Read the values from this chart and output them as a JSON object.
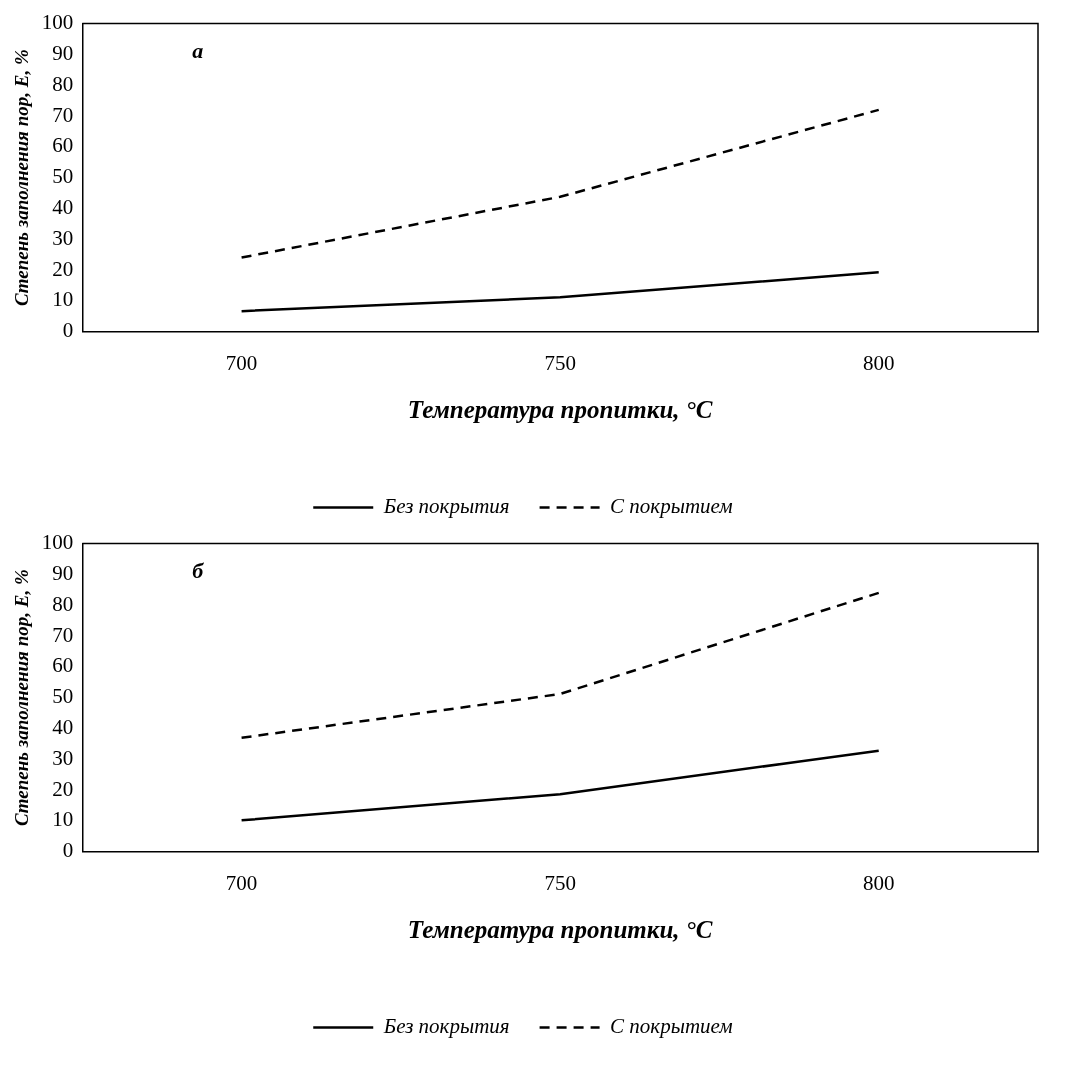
{
  "chart_data": [
    {
      "type": "line",
      "xlabel": "Температура пропитки, °C",
      "ylabel": "Степень заполнения пор, E, %",
      "annotations": [
        "а"
      ],
      "categories": [
        "700",
        "750",
        "800"
      ],
      "ylim": [
        0,
        100
      ],
      "yticks": [
        0,
        10,
        20,
        30,
        40,
        50,
        60,
        70,
        80,
        90,
        100
      ],
      "grid": false,
      "legend": "bottom",
      "marker": "none",
      "series": [
        {
          "name": "Без покрытия",
          "color": "#000000",
          "line_style": "solid",
          "values": [
            6.7,
            11.2,
            19.3
          ]
        },
        {
          "name": "С покрытием",
          "color": "#000000",
          "line_style": "dashed",
          "values": [
            24.1,
            43.8,
            72
          ]
        }
      ]
    },
    {
      "type": "line",
      "xlabel": "Температура пропитки, °C",
      "ylabel": "Степень заполнения пор, E, %",
      "annotations": [
        "б"
      ],
      "categories": [
        "700",
        "750",
        "800"
      ],
      "ylim": [
        0,
        100
      ],
      "yticks": [
        0,
        10,
        20,
        30,
        40,
        50,
        60,
        70,
        80,
        90,
        100
      ],
      "grid": false,
      "legend": "bottom",
      "marker": "none",
      "series": [
        {
          "name": "Без покрытия",
          "color": "#000000",
          "line_style": "solid",
          "values": [
            10.2,
            18.7,
            32.8
          ]
        },
        {
          "name": "С покрытием",
          "color": "#000000",
          "line_style": "dashed",
          "values": [
            37,
            51.2,
            84
          ]
        }
      ]
    }
  ]
}
